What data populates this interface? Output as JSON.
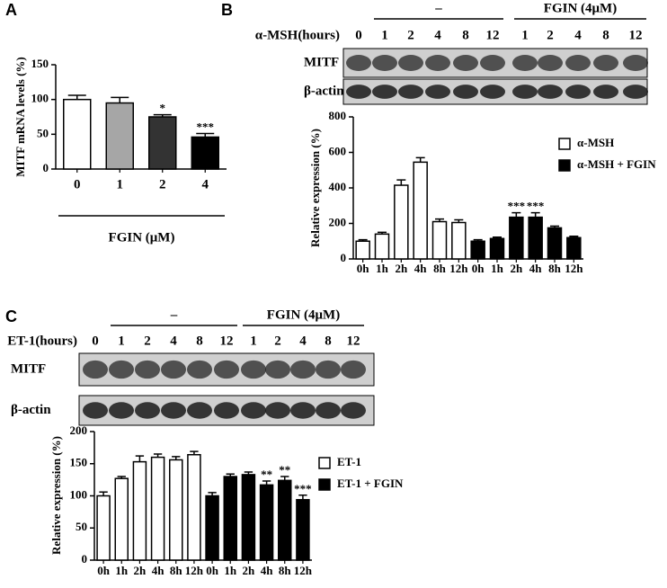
{
  "panel_labels": [
    "A",
    "B",
    "C"
  ],
  "blots": [
    {
      "treatment": "α-MSH(hours)",
      "groups": [
        "–",
        "FGIN (4μM)"
      ],
      "lanes": [
        "0",
        "1",
        "2",
        "4",
        "8",
        "12",
        "1",
        "2",
        "4",
        "8",
        "12"
      ],
      "rows": [
        "MITF",
        "β-actin"
      ]
    },
    {
      "treatment": "ET-1(hours)",
      "groups": [
        "–",
        "FGIN (4μM)"
      ],
      "lanes": [
        "0",
        "1",
        "2",
        "4",
        "8",
        "12",
        "1",
        "2",
        "4",
        "8",
        "12"
      ],
      "rows": [
        "MITF",
        "β-actin"
      ]
    }
  ],
  "chart_data": [
    {
      "type": "bar",
      "y_label": "MITF mRNA levels (%)",
      "x_label": "FGIN (μM)",
      "categories": [
        "0",
        "1",
        "2",
        "4"
      ],
      "values": [
        100,
        95,
        75,
        46
      ],
      "errors": [
        6,
        8,
        3,
        5
      ],
      "colors": [
        "#ffffff",
        "#a6a6a6",
        "#333333",
        "#000000"
      ],
      "ylim": [
        0,
        150
      ],
      "yticks": [
        0,
        50,
        100,
        150
      ],
      "annotations": [
        {
          "index": 2,
          "text": "*"
        },
        {
          "index": 3,
          "text": "***"
        }
      ]
    },
    {
      "type": "bar",
      "y_label": "Relative expression (%)",
      "legend": "upper right",
      "categories": [
        "0h",
        "1h",
        "2h",
        "4h",
        "8h",
        "12h",
        "0h",
        "1h",
        "2h",
        "4h",
        "8h",
        "12h"
      ],
      "series": [
        {
          "name": "α-MSH",
          "color": "#ffffff",
          "values": [
            100,
            140,
            415,
            545,
            210,
            205,
            null,
            null,
            null,
            null,
            null,
            null
          ],
          "errors": [
            8,
            10,
            30,
            25,
            15,
            15,
            null,
            null,
            null,
            null,
            null,
            null
          ]
        },
        {
          "name": "α-MSH + FGIN",
          "color": "#000000",
          "values": [
            null,
            null,
            null,
            null,
            null,
            null,
            100,
            115,
            235,
            235,
            175,
            120
          ],
          "errors": [
            null,
            null,
            null,
            null,
            null,
            null,
            8,
            8,
            25,
            25,
            10,
            8
          ]
        }
      ],
      "ylim": [
        0,
        800
      ],
      "yticks": [
        0,
        200,
        400,
        600,
        800
      ],
      "annotations": [
        {
          "series": 1,
          "index": 8,
          "text": "***"
        },
        {
          "series": 1,
          "index": 9,
          "text": "***"
        }
      ]
    },
    {
      "type": "bar",
      "y_label": "Relative expression (%)",
      "legend": "upper right",
      "categories": [
        "0h",
        "1h",
        "2h",
        "4h",
        "8h",
        "12h",
        "0h",
        "1h",
        "2h",
        "4h",
        "8h",
        "12h"
      ],
      "series": [
        {
          "name": "ET-1",
          "color": "#ffffff",
          "values": [
            100,
            127,
            153,
            160,
            156,
            164,
            null,
            null,
            null,
            null,
            null,
            null
          ],
          "errors": [
            6,
            3,
            9,
            5,
            5,
            5,
            null,
            null,
            null,
            null,
            null,
            null
          ]
        },
        {
          "name": "ET-1 + FGIN",
          "color": "#000000",
          "values": [
            null,
            null,
            null,
            null,
            null,
            null,
            100,
            130,
            133,
            117,
            124,
            94
          ],
          "errors": [
            null,
            null,
            null,
            null,
            null,
            null,
            5,
            4,
            4,
            6,
            6,
            7
          ]
        }
      ],
      "ylim": [
        0,
        200
      ],
      "yticks": [
        0,
        50,
        100,
        150,
        200
      ],
      "annotations": [
        {
          "series": 1,
          "index": 9,
          "text": "**"
        },
        {
          "series": 1,
          "index": 10,
          "text": "**"
        },
        {
          "series": 1,
          "index": 11,
          "text": "***"
        }
      ]
    }
  ]
}
